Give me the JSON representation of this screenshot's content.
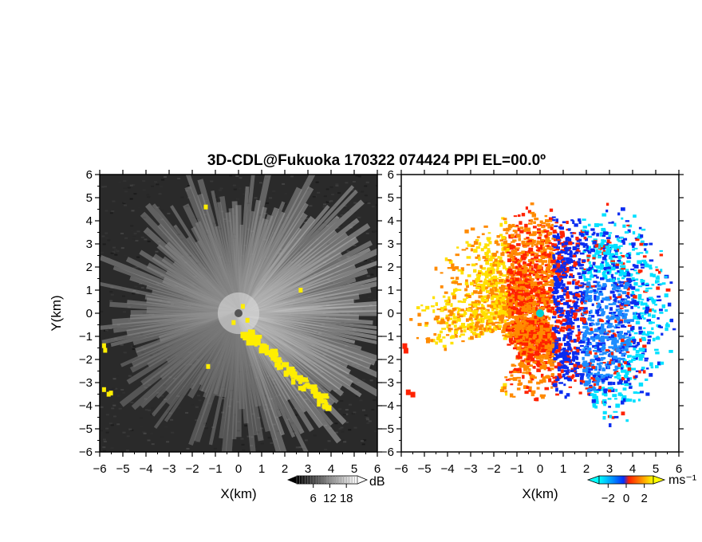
{
  "title": "3D-CDL@Fukuoka 170322 074424 PPI EL=00.0º",
  "chart_data": [
    {
      "type": "heatmap",
      "panel": "left",
      "quantity_unit": "dB",
      "xlabel": "X(km)",
      "ylabel": "Y(km)",
      "xlim": [
        -6,
        6
      ],
      "ylim": [
        -6,
        6
      ],
      "x_ticks": [
        "−6",
        "−5",
        "−4",
        "−3",
        "−2",
        "−1",
        "0",
        "1",
        "2",
        "3",
        "4",
        "5",
        "6"
      ],
      "y_ticks": [
        "6",
        "5",
        "4",
        "3",
        "2",
        "1",
        "0",
        "−1",
        "−2",
        "−3",
        "−4",
        "−5",
        "−6"
      ],
      "colorbar": {
        "label": "dB",
        "ticks": [
          "6",
          "12",
          "18"
        ],
        "range": [
          0,
          22
        ],
        "colors": [
          "#000000",
          "#ffffff"
        ]
      },
      "background_color": "#2b2b2b",
      "masked_color": "#ffee00",
      "radar_origin": [
        0,
        0
      ],
      "beam_pattern": "radial beams concentrated toward the east; bright up to ~6 km range",
      "masked_regions_description": "yellow clutter along SE diagonal from (0,-0.5) to (4,-4), small patches at west edge near y=-1.5 and y=-3.3"
    },
    {
      "type": "heatmap",
      "panel": "right",
      "quantity_unit": "ms⁻¹",
      "xlabel": "X(km)",
      "ylabel": "",
      "xlim": [
        -6,
        6
      ],
      "ylim": [
        -6,
        6
      ],
      "x_ticks": [
        "−6",
        "−5",
        "−4",
        "−3",
        "−2",
        "−1",
        "0",
        "1",
        "2",
        "3",
        "4",
        "5",
        "6"
      ],
      "y_ticks": [
        "6",
        "5",
        "4",
        "3",
        "2",
        "1",
        "0",
        "−1",
        "−2",
        "−3",
        "−4",
        "−5",
        "−6"
      ],
      "colorbar": {
        "label": "ms⁻¹",
        "ticks": [
          "−2",
          "0",
          "2"
        ],
        "range": [
          -3,
          3
        ],
        "colors": [
          "#00ffff",
          "#0090ff",
          "#0030ff",
          "#ff2000",
          "#ff8000",
          "#ffff00"
        ]
      },
      "background_color": "#ffffff",
      "radar_marker_color": "#00d0d0",
      "velocity_pattern": "blue (negative) to the east and north-east, red/orange/yellow (positive) to the west and north-west"
    }
  ]
}
